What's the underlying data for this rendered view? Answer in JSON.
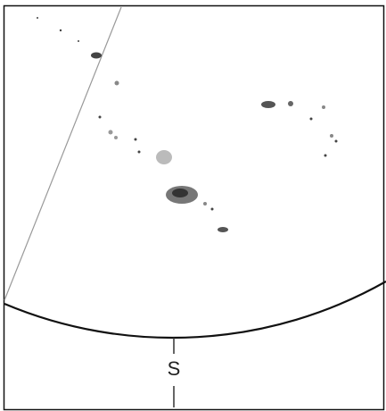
{
  "label": "S"
}
